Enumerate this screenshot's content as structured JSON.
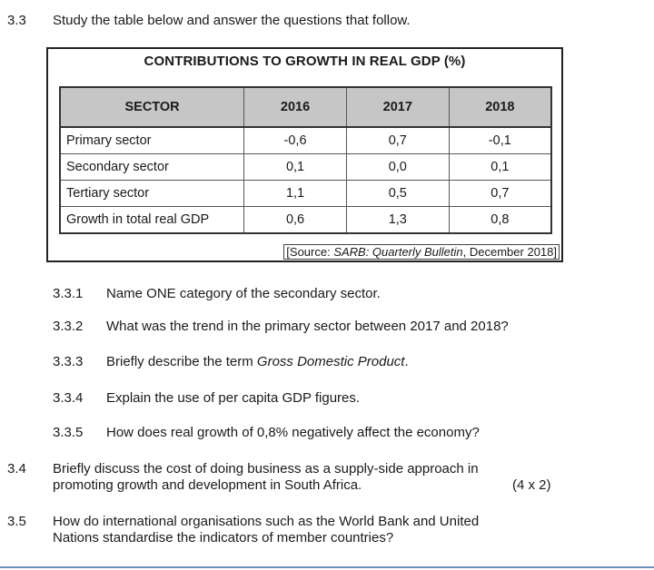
{
  "q33": {
    "number": "3.3",
    "text": "Study the table below and answer the questions that follow."
  },
  "table": {
    "title": "CONTRIBUTIONS TO GROWTH IN REAL GDP (%)",
    "headers": [
      "SECTOR",
      "2016",
      "2017",
      "2018"
    ],
    "rows": [
      [
        "Primary sector",
        "-0,6",
        "0,7",
        "-0,1"
      ],
      [
        "Secondary sector",
        "0,1",
        "0,0",
        "0,1"
      ],
      [
        "Tertiary sector",
        "1,1",
        "0,5",
        "0,7"
      ],
      [
        "Growth in total real GDP",
        "0,6",
        "1,3",
        "0,8"
      ]
    ],
    "source_prefix": "[Source: ",
    "source_italic": "SARB: Quarterly Bulletin",
    "source_suffix": ", December 2018]"
  },
  "subquestions": [
    {
      "number": "3.3.1",
      "text": "Name ONE category of the secondary sector."
    },
    {
      "number": "3.3.2",
      "text": "What was the trend in the primary sector between 2017 and 2018?"
    },
    {
      "number": "3.3.3",
      "text_before": "Briefly describe the term ",
      "text_italic": "Gross Domestic Product",
      "text_after": "."
    },
    {
      "number": "3.3.4",
      "text": "Explain the use of per capita GDP figures."
    },
    {
      "number": "3.3.5",
      "text": "How does real growth of 0,8% negatively affect the economy?"
    }
  ],
  "q34": {
    "number": "3.4",
    "line1": "Briefly discuss the cost of doing business as a supply-side approach in",
    "line2": "promoting growth and development in South Africa.",
    "marks": "(4 x 2)"
  },
  "q35": {
    "number": "3.5",
    "line1": "How do international organisations such as the World Bank and United",
    "line2": "Nations standardise the indicators of member countries?"
  }
}
